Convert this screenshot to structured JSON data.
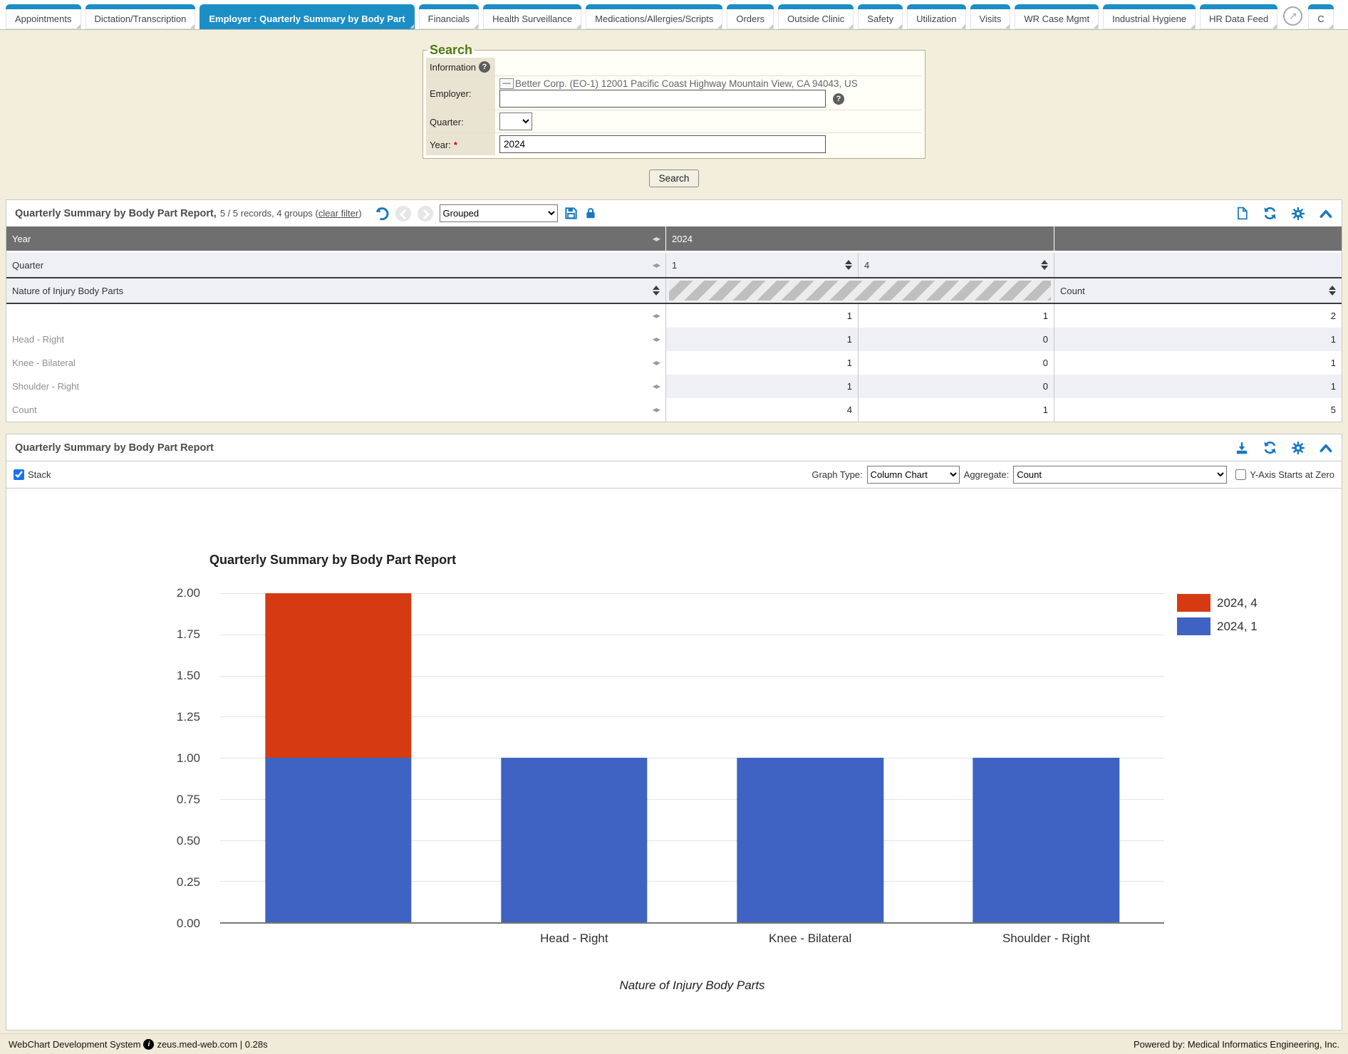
{
  "tabs": {
    "popout_after": "HR Data Feed",
    "items": [
      {
        "label": "Appointments",
        "active": false
      },
      {
        "label": "Dictation/Transcription",
        "active": false
      },
      {
        "label": "Employer : Quarterly Summary by Body Part",
        "active": true
      },
      {
        "label": "Financials",
        "active": false
      },
      {
        "label": "Health Surveillance",
        "active": false
      },
      {
        "label": "Medications/Allergies/Scripts",
        "active": false
      },
      {
        "label": "Orders",
        "active": false
      },
      {
        "label": "Outside Clinic",
        "active": false
      },
      {
        "label": "Safety",
        "active": false
      },
      {
        "label": "Utilization",
        "active": false
      },
      {
        "label": "Visits",
        "active": false
      },
      {
        "label": "WR Case Mgmt",
        "active": false
      },
      {
        "label": "Industrial Hygiene",
        "active": false
      },
      {
        "label": "HR Data Feed",
        "active": false
      },
      {
        "label": "C",
        "active": false,
        "partial": true
      }
    ]
  },
  "search": {
    "legend": "Search",
    "info_label": "Information",
    "employer_label": "Employer:",
    "collapse_button": "—",
    "employer_value": "Better Corp. (EO-1) 12001 Pacific Coast Highway Mountain View, CA 94043, US",
    "employer_input_value": "",
    "quarter_label": "Quarter:",
    "quarter_value": "",
    "year_label": "Year:",
    "year_required_mark": "*",
    "year_value": "2024",
    "search_button": "Search"
  },
  "panel1": {
    "title": "Quarterly Summary by Body Part Report,",
    "records": "5 / 5 records, 4 groups (",
    "clear_filter": "clear filter",
    "records_close": ")",
    "group_mode": "Grouped"
  },
  "table": {
    "year_label": "Year",
    "year_value": "2024",
    "quarter_label": "Quarter",
    "quarter_cols": [
      "1",
      "4"
    ],
    "body_parts_label": "Nature of Injury Body Parts",
    "count_label": "Count",
    "rows": [
      {
        "label": "",
        "q1": "1",
        "q4": "1",
        "count": "2"
      },
      {
        "label": "Head - Right",
        "q1": "1",
        "q4": "0",
        "count": "1"
      },
      {
        "label": "Knee - Bilateral",
        "q1": "1",
        "q4": "0",
        "count": "1"
      },
      {
        "label": "Shoulder - Right",
        "q1": "1",
        "q4": "0",
        "count": "1"
      },
      {
        "label": "Count",
        "q1": "4",
        "q4": "1",
        "count": "5"
      }
    ]
  },
  "panel2": {
    "title": "Quarterly Summary by Body Part Report",
    "stack_label": "Stack",
    "stack_checked": true,
    "graph_type_label": "Graph Type:",
    "graph_type_value": "Column Chart",
    "aggregate_label": "Aggregate:",
    "aggregate_value": "Count",
    "yzero_label": "Y-Axis Starts at Zero",
    "yzero_checked": false
  },
  "chart_data": {
    "type": "bar",
    "stacked": true,
    "title": "Quarterly Summary by Body Part Report",
    "xlabel": "Nature of Injury Body Parts",
    "ylabel": "",
    "categories": [
      "",
      "Head - Right",
      "Knee - Bilateral",
      "Shoulder - Right"
    ],
    "series": [
      {
        "name": "2024, 4",
        "color": "#d63a12",
        "values": [
          1,
          0,
          0,
          0
        ]
      },
      {
        "name": "2024, 1",
        "color": "#3f63c2",
        "values": [
          1,
          1,
          1,
          1
        ]
      }
    ],
    "ylim": [
      0,
      2
    ],
    "yticks": [
      "2.00",
      "1.75",
      "1.50",
      "1.25",
      "1.00",
      "0.75",
      "0.50",
      "0.25",
      "0.00"
    ],
    "grid": true,
    "legend_position": "right"
  },
  "footer": {
    "left_app": "WebChart Development System",
    "left_host": "zeus.med-web.com | 0.28s",
    "right": "Powered by: Medical Informatics Engineering, Inc."
  },
  "colors": {
    "tab_blue": "#1b8ec6",
    "icon_blue": "#1878bd",
    "chart_red": "#d63a12",
    "chart_blue": "#3f63c2",
    "page_cream": "#f3eedc"
  }
}
